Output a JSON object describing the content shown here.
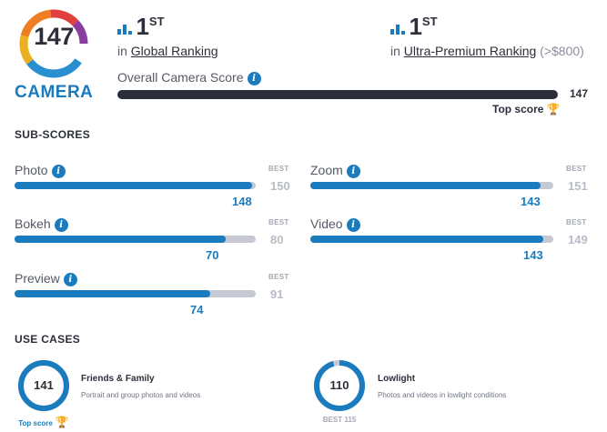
{
  "badge": {
    "score": "147",
    "label": "CAMERA",
    "ring_colors": [
      "#2a8fd0",
      "#e9b020",
      "#ef7d22",
      "#e0413d",
      "#8a3fa0"
    ]
  },
  "ranking": {
    "global": {
      "rank": "1",
      "suffix": "ST",
      "prefix": "in",
      "link": "Global Ranking"
    },
    "ultra": {
      "rank": "1",
      "suffix": "ST",
      "prefix": "in",
      "link": "Ultra-Premium Ranking",
      "extra": "(>$800)"
    }
  },
  "overall": {
    "label": "Overall Camera Score",
    "value": "147",
    "top_score": "Top score",
    "info_icon": "info-icon"
  },
  "subscores": {
    "title": "SUB-SCORES",
    "best_label": "BEST",
    "items": [
      {
        "label": "Photo",
        "score": 148,
        "best": 150
      },
      {
        "label": "Bokeh",
        "score": 70,
        "best": 80
      },
      {
        "label": "Preview",
        "score": 74,
        "best": 91
      },
      {
        "label": "Zoom",
        "score": 143,
        "best": 151
      },
      {
        "label": "Video",
        "score": 143,
        "best": 149
      }
    ]
  },
  "use_cases": {
    "title": "USE CASES",
    "items": [
      {
        "score": 141,
        "ring_fraction": 1.0,
        "title": "Friends & Family",
        "desc": "Portrait and group photos and videos",
        "foot": "Top score"
      },
      {
        "score": 110,
        "ring_fraction": 0.957,
        "title": "Lowlight",
        "desc": "Photos and videos in lowlight conditions",
        "foot": "BEST 115"
      }
    ]
  },
  "colors": {
    "accent": "#1b7bbf",
    "dark": "#2c2f3a",
    "track": "#c6c9d4",
    "gold": "#f0b429"
  }
}
